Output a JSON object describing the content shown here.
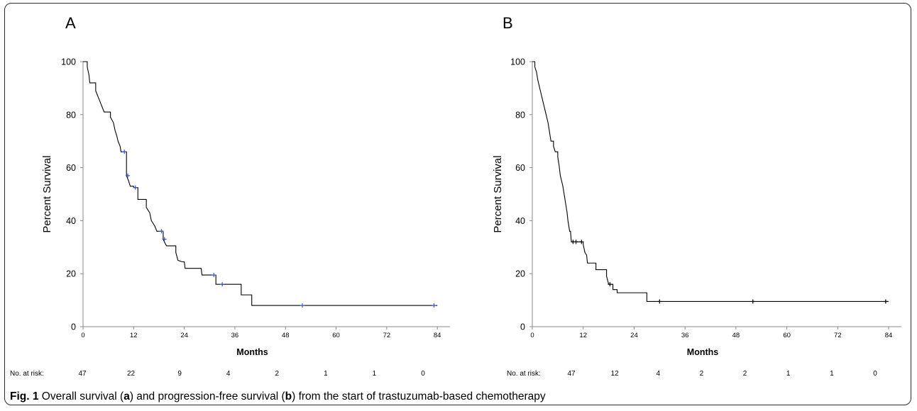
{
  "caption": {
    "label": "Fig. 1",
    "parts": [
      {
        "text": " Overall survival (",
        "bold": false
      },
      {
        "text": "a",
        "bold": true
      },
      {
        "text": ") and progression-free survival (",
        "bold": false
      },
      {
        "text": "b",
        "bold": true
      },
      {
        "text": ") from the start of trastuzumab-based chemotherapy",
        "bold": false
      }
    ]
  },
  "chart_data": [
    {
      "type": "line",
      "panel_label": "A",
      "title": "",
      "xlabel": "Months",
      "ylabel": "Percent Survival",
      "xlim": [
        0,
        87
      ],
      "ylim": [
        0,
        100
      ],
      "xticks": [
        0,
        12,
        24,
        36,
        48,
        60,
        72,
        84
      ],
      "yticks": [
        0,
        20,
        40,
        60,
        80,
        100
      ],
      "grid": false,
      "line_color": "#000000",
      "censor_color": "#3355cc",
      "risk_table": {
        "label": "No. at risk:",
        "values": [
          "47",
          "22",
          "9",
          "4",
          "2",
          "1",
          "1",
          "0"
        ]
      },
      "series": [
        {
          "curve": [
            [
              0,
              100
            ],
            [
              1,
              100
            ],
            [
              1,
              98
            ],
            [
              1.4,
              95
            ],
            [
              1.6,
              92
            ],
            [
              3,
              92
            ],
            [
              3,
              89
            ],
            [
              3.5,
              87
            ],
            [
              4,
              85
            ],
            [
              4.5,
              83
            ],
            [
              5,
              81
            ],
            [
              6.5,
              81
            ],
            [
              6.5,
              79
            ],
            [
              7.2,
              77
            ],
            [
              7.6,
              74
            ],
            [
              8,
              72
            ],
            [
              8.3,
              70
            ],
            [
              8.8,
              68
            ],
            [
              9,
              66
            ],
            [
              10.3,
              66
            ],
            [
              10.3,
              57
            ],
            [
              10.8,
              55
            ],
            [
              11.2,
              53
            ],
            [
              12,
              53
            ],
            [
              12,
              52.5
            ],
            [
              13,
              52.5
            ],
            [
              13,
              48
            ],
            [
              15,
              48
            ],
            [
              15,
              45
            ],
            [
              15.8,
              43
            ],
            [
              16.2,
              40
            ],
            [
              17,
              38
            ],
            [
              17.5,
              36
            ],
            [
              19,
              36
            ],
            [
              19,
              33
            ],
            [
              19.6,
              31
            ],
            [
              19.8,
              30.5
            ],
            [
              22,
              30.5
            ],
            [
              22,
              28
            ],
            [
              22.5,
              25
            ],
            [
              23.5,
              24.5
            ],
            [
              24,
              24.5
            ],
            [
              24.2,
              22
            ],
            [
              28,
              22
            ],
            [
              28.2,
              19.5
            ],
            [
              31.5,
              19.5
            ],
            [
              31.5,
              16
            ],
            [
              37.5,
              16
            ],
            [
              37.5,
              12
            ],
            [
              40,
              12
            ],
            [
              40,
              8
            ],
            [
              84,
              8
            ]
          ],
          "censors": [
            [
              9.8,
              66
            ],
            [
              10.6,
              57
            ],
            [
              12.4,
              52.5
            ],
            [
              18.6,
              36
            ],
            [
              19.3,
              33
            ],
            [
              31,
              19.5
            ],
            [
              33,
              16
            ],
            [
              52,
              8
            ],
            [
              83.2,
              8
            ]
          ]
        }
      ]
    },
    {
      "type": "line",
      "panel_label": "B",
      "title": "",
      "xlabel": "Months",
      "ylabel": "Percent Survival",
      "xlim": [
        0,
        87
      ],
      "ylim": [
        0,
        100
      ],
      "xticks": [
        0,
        12,
        24,
        36,
        48,
        60,
        72,
        84
      ],
      "yticks": [
        0,
        20,
        40,
        60,
        80,
        100
      ],
      "grid": false,
      "line_color": "#000000",
      "censor_color": "#000000",
      "risk_table": {
        "label": "No. at risk:",
        "values": [
          "47",
          "12",
          "4",
          "2",
          "2",
          "1",
          "1",
          "0"
        ]
      },
      "series": [
        {
          "curve": [
            [
              0,
              100
            ],
            [
              0.6,
              100
            ],
            [
              0.6,
              98
            ],
            [
              1,
              96
            ],
            [
              1.3,
              93
            ],
            [
              1.6,
              91
            ],
            [
              1.9,
              89
            ],
            [
              2.2,
              87
            ],
            [
              2.5,
              85
            ],
            [
              2.8,
              83
            ],
            [
              3.1,
              81
            ],
            [
              3.4,
              79
            ],
            [
              3.7,
              77
            ],
            [
              4,
              74
            ],
            [
              4.2,
              72
            ],
            [
              4.4,
              70
            ],
            [
              5,
              70
            ],
            [
              5,
              68
            ],
            [
              5.4,
              66
            ],
            [
              6,
              66
            ],
            [
              6,
              64
            ],
            [
              6.3,
              61
            ],
            [
              6.6,
              57
            ],
            [
              6.9,
              55
            ],
            [
              7.2,
              53
            ],
            [
              7.4,
              51
            ],
            [
              7.6,
              49
            ],
            [
              7.8,
              47
            ],
            [
              8,
              45
            ],
            [
              8.2,
              43
            ],
            [
              8.4,
              40
            ],
            [
              8.6,
              38
            ],
            [
              8.8,
              36
            ],
            [
              9,
              36
            ],
            [
              9.2,
              32
            ],
            [
              12,
              32
            ],
            [
              12,
              31
            ],
            [
              12.4,
              28
            ],
            [
              12.8,
              27
            ],
            [
              13,
              24
            ],
            [
              15,
              24
            ],
            [
              15,
              21.5
            ],
            [
              17.5,
              21.5
            ],
            [
              17.5,
              19
            ],
            [
              18,
              16
            ],
            [
              19,
              16
            ],
            [
              19,
              14
            ],
            [
              20,
              14
            ],
            [
              20,
              12.8
            ],
            [
              27,
              12.8
            ],
            [
              27,
              9.5
            ],
            [
              84,
              9.5
            ]
          ],
          "censors": [
            [
              9.6,
              32
            ],
            [
              10.3,
              32
            ],
            [
              11.6,
              32
            ],
            [
              18.3,
              16
            ],
            [
              30,
              9.5
            ],
            [
              52,
              9.5
            ],
            [
              83.3,
              9.5
            ]
          ]
        }
      ]
    }
  ]
}
